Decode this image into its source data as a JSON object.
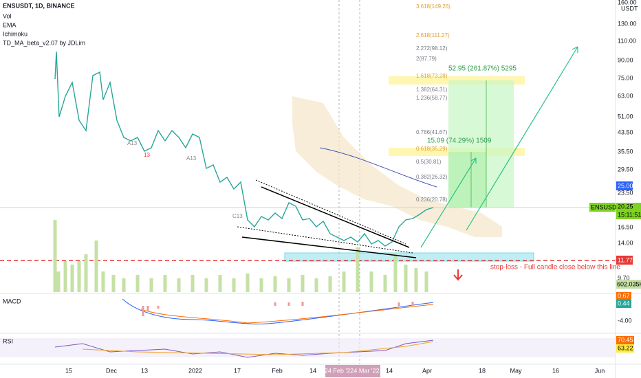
{
  "header": {
    "symbol": "ENSUSDT, 1D, BINANCE",
    "indicators": [
      "Vol",
      "EMA",
      "Ichimoku",
      "TD_MA_beta_v2.07 by JDLim"
    ]
  },
  "price_axis": {
    "currency": "USDT",
    "labels": [
      "160.00",
      "130.00",
      "110.00",
      "90.00",
      "75.00",
      "63.00",
      "51.00",
      "43.50",
      "35.50",
      "29.50",
      "23.50",
      "16.50",
      "14.00",
      "9.70"
    ]
  },
  "badges": {
    "ema": "25.00",
    "symbol": "ENSUSDT",
    "price": "20.25",
    "countdown": "15:11:51",
    "stop": "11.77",
    "volume": "602.035K"
  },
  "fib_levels": [
    "3.618(149.26)",
    "2.618(111.27)",
    "2.272(98.12)",
    "2(87.79)",
    "1.618(73.28)",
    "1.382(64.31)",
    "1.236(58.77)",
    "0.786(41.67)",
    "0.618(35.29)",
    "0.5(30.81)",
    "0.382(26.32)",
    "0.236(20.78)"
  ],
  "targets": [
    "52.95 (261.87%) 5295",
    "15.09 (74.29%) 1509"
  ],
  "stop_loss": "stop-loss - Full candle close below this line",
  "markers": [
    "A13",
    "13",
    "A13",
    "C13"
  ],
  "macd": {
    "title": "MACD",
    "labels": [
      "0.67",
      "0.44",
      "-4.00"
    ]
  },
  "rsi": {
    "title": "RSI",
    "labels": [
      "70.45",
      "63.22"
    ]
  },
  "x_axis": [
    "15",
    "Dec",
    "13",
    "2022",
    "17",
    "Feb",
    "14",
    "24 Feb '22",
    "4 Mar '22",
    "14",
    "Apr",
    "18",
    "May",
    "16",
    "Jun"
  ]
}
